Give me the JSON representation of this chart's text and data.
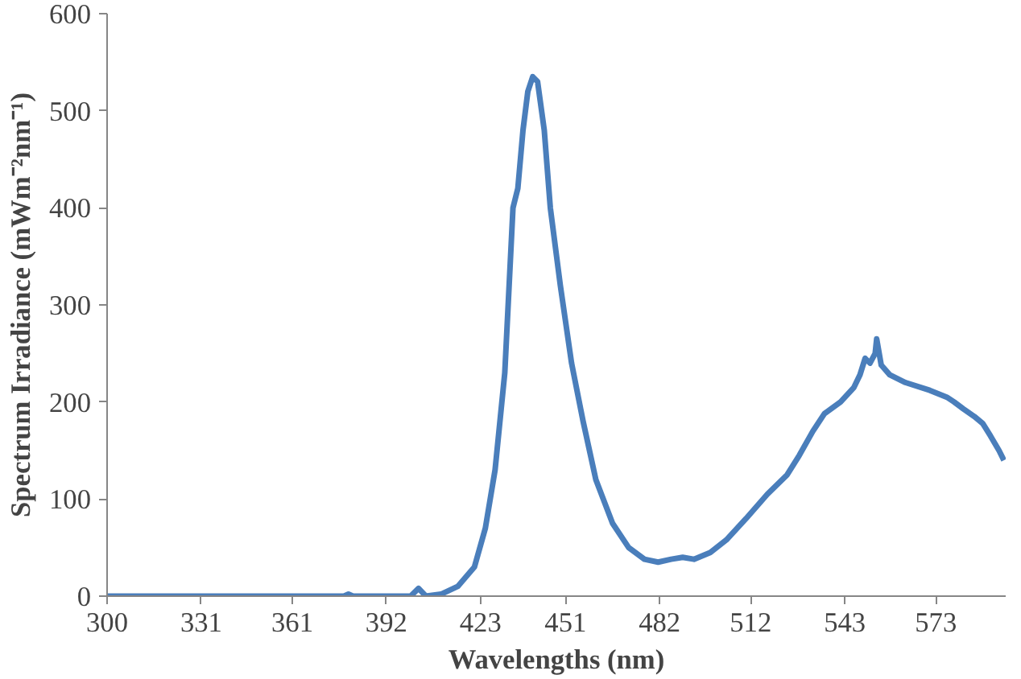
{
  "chart_data": {
    "type": "line",
    "xlabel": "Wavelengths (nm)",
    "ylabel": "Spectrum Irradiance (mWm⁻²nm⁻¹)",
    "x": [
      300,
      340,
      378,
      379.5,
      381,
      400,
      402.6,
      405,
      410,
      415.5,
      421,
      424.6,
      427.8,
      431,
      433.7,
      435.3,
      437,
      438.6,
      440.2,
      441.8,
      444,
      446,
      449.3,
      453,
      456.8,
      461,
      466.5,
      471.8,
      477,
      481.5,
      485.8,
      489.6,
      493.3,
      498.7,
      504,
      510.5,
      517.5,
      524,
      528,
      532.5,
      536.3,
      541.6,
      546,
      548,
      549.7,
      551.3,
      553,
      553.5,
      555,
      557.8,
      563,
      571,
      576.6,
      579,
      582,
      585.7,
      588.4,
      591,
      593.8,
      595.4
    ],
    "series": [
      {
        "color": "#4a7ebb",
        "values": [
          0,
          0,
          0,
          2,
          0,
          0,
          8,
          0,
          2,
          10,
          30,
          70,
          130,
          230,
          400,
          420,
          480,
          520,
          535,
          530,
          480,
          400,
          320,
          240,
          180,
          120,
          75,
          50,
          38,
          35,
          38,
          40,
          38,
          45,
          58,
          80,
          105,
          125,
          145,
          170,
          188,
          200,
          215,
          228,
          245,
          240,
          250,
          265,
          238,
          228,
          220,
          212,
          205,
          200,
          193,
          185,
          178,
          165,
          150,
          140
        ]
      }
    ],
    "xlim": [
      300,
      596
    ],
    "xticks": [
      300,
      331,
      361,
      392,
      423,
      451,
      482,
      512,
      543,
      573
    ],
    "ylim": [
      0,
      600
    ],
    "yticks": [
      0,
      100,
      200,
      300,
      400,
      500,
      600
    ],
    "grid": false,
    "marker": "none",
    "line_style": "solid"
  }
}
